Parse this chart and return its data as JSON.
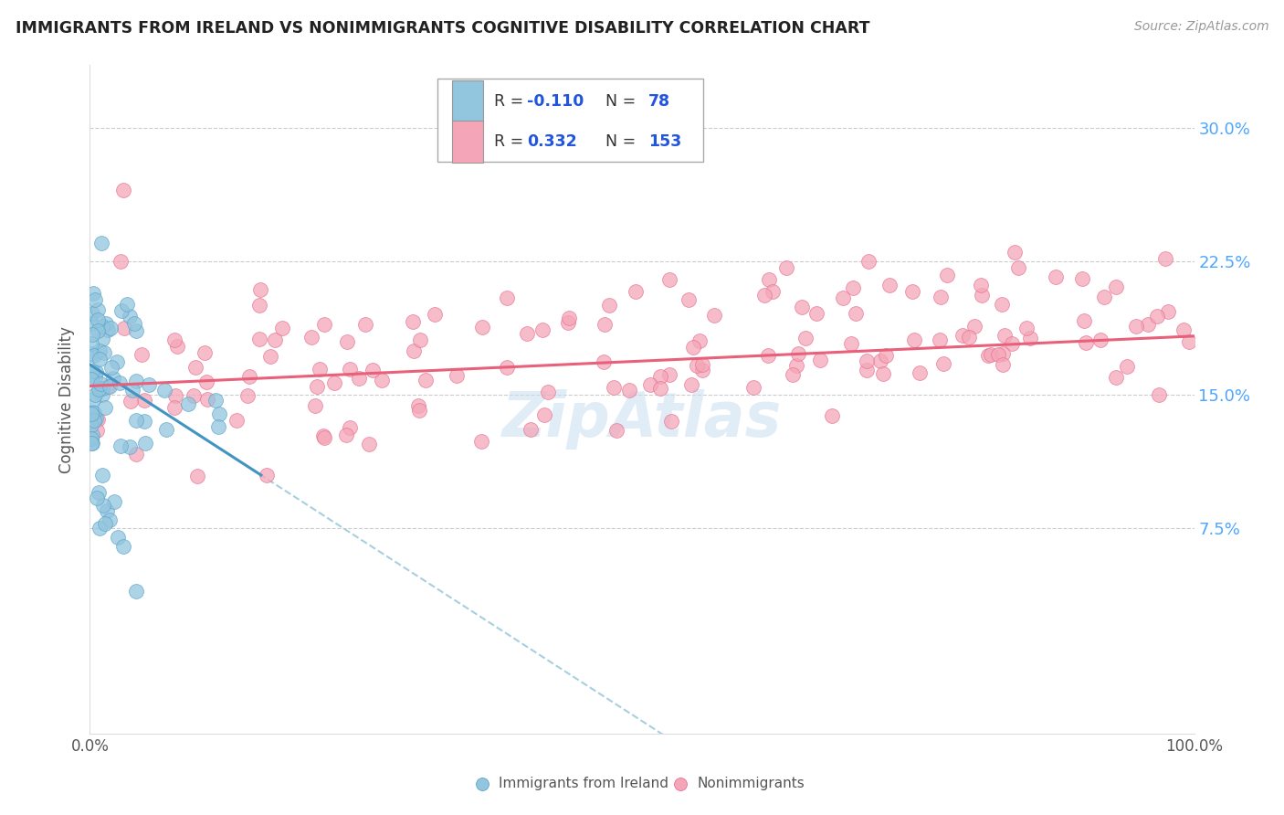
{
  "title": "IMMIGRANTS FROM IRELAND VS NONIMMIGRANTS COGNITIVE DISABILITY CORRELATION CHART",
  "source": "Source: ZipAtlas.com",
  "ylabel": "Cognitive Disability",
  "color_blue": "#92c5de",
  "color_pink": "#f4a6b8",
  "color_blue_edge": "#5ba3c9",
  "color_pink_edge": "#e87090",
  "color_blue_line": "#4393c3",
  "color_pink_line": "#e8607a",
  "color_dashed_blue": "#a8cfe0",
  "background_color": "#ffffff",
  "watermark_color": "#c8ddf0",
  "grid_color": "#cccccc",
  "right_tick_color": "#4da6ff",
  "ytick_vals": [
    0.075,
    0.15,
    0.225,
    0.3
  ],
  "ytick_labels": [
    "7.5%",
    "15.0%",
    "22.5%",
    "30.0%"
  ],
  "ylim_min": -0.04,
  "ylim_max": 0.335,
  "xlim_min": 0.0,
  "xlim_max": 1.0
}
